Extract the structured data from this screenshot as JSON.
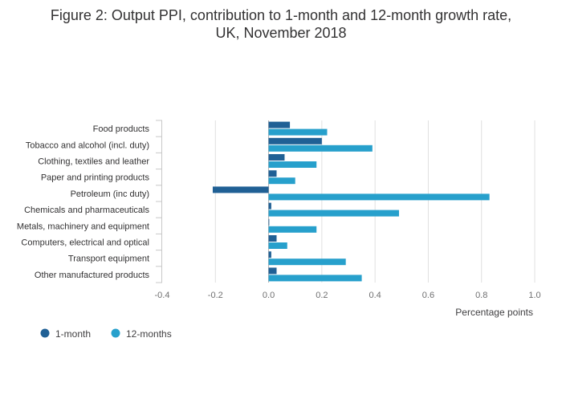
{
  "chart_data": {
    "type": "bar",
    "orientation": "horizontal",
    "title": "Figure 2: Output PPI, contribution to 1-month and 12-month growth rate, UK, November 2018",
    "title_lines": [
      "Figure 2: Output PPI, contribution to 1-month and 12-month growth rate,",
      "UK, November 2018"
    ],
    "xlabel": "Percentage points",
    "ylabel": "",
    "xlim": [
      -0.4,
      1.0
    ],
    "x_ticks": [
      -0.4,
      -0.2,
      0.0,
      0.2,
      0.4,
      0.6,
      0.8,
      1.0
    ],
    "x_tick_labels": [
      "-0.4",
      "-0.2",
      "0.0",
      "0.2",
      "0.4",
      "0.6",
      "0.8",
      "1.0"
    ],
    "grid": true,
    "legend_position": "bottom-left",
    "categories": [
      "Food products",
      "Tobacco and alcohol (incl. duty)",
      "Clothing, textiles and leather",
      "Paper and printing products",
      "Petroleum (inc duty)",
      "Chemicals and pharmaceuticals",
      "Metals, machinery and equipment",
      "Computers, electrical and optical",
      "Transport equipment",
      "Other manufactured products"
    ],
    "series": [
      {
        "name": "1-month",
        "color": "#206095",
        "values": [
          0.08,
          0.2,
          0.06,
          0.03,
          -0.21,
          0.01,
          0.0,
          0.03,
          0.01,
          0.03
        ]
      },
      {
        "name": "12-months",
        "color": "#27a0cc",
        "values": [
          0.22,
          0.39,
          0.18,
          0.1,
          0.83,
          0.49,
          0.18,
          0.07,
          0.29,
          0.35
        ]
      }
    ]
  }
}
